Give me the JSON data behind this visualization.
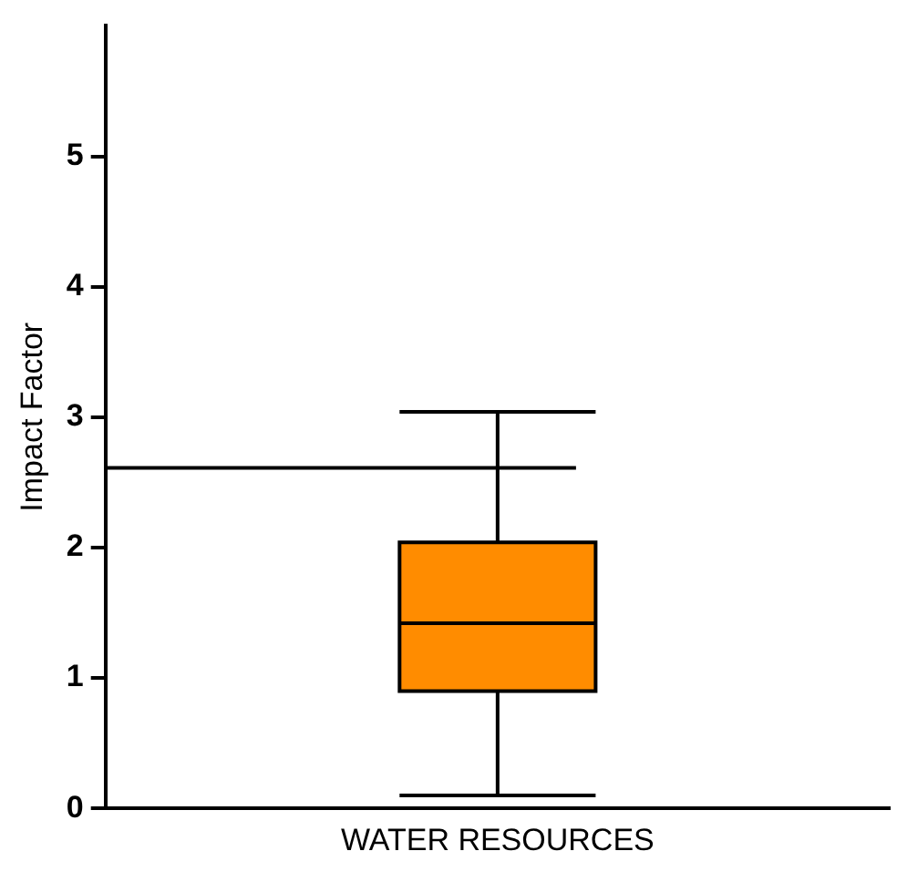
{
  "chart_data": {
    "type": "box",
    "categories": [
      "WATER RESOURCES"
    ],
    "ylabel": "Impact Factor",
    "ylim": [
      0,
      6
    ],
    "yticks": [
      0,
      1,
      2,
      3,
      4,
      5
    ],
    "grid": false,
    "series": [
      {
        "color": "#ff8c00",
        "boxes": [
          {
            "low": 0.1,
            "q1": 0.9,
            "median": 1.42,
            "q3": 2.04,
            "high": 3.04
          }
        ]
      }
    ],
    "ref_lines": [
      {
        "axis": "y",
        "value": 2.61
      }
    ]
  }
}
